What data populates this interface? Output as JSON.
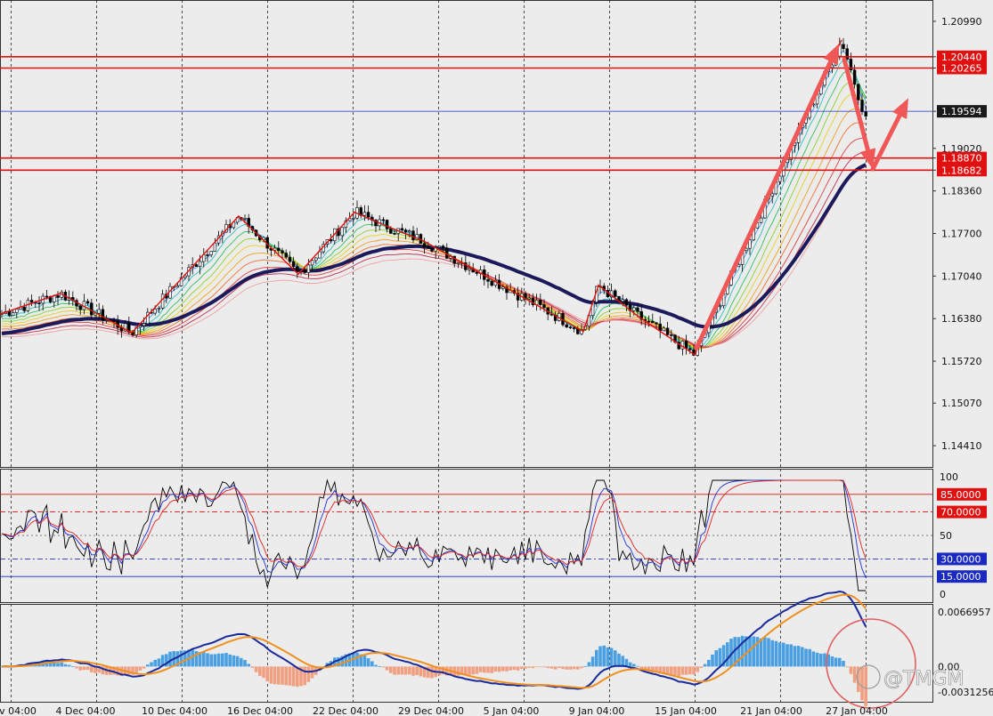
{
  "chart_data": [
    {
      "type": "candlestick",
      "panel": "price",
      "y_ticks": [
        "1.20990",
        "1.20440",
        "1.20265",
        "1.19594",
        "1.19020",
        "1.18870",
        "1.18682",
        "1.18360",
        "1.17700",
        "1.17040",
        "1.16380",
        "1.15720",
        "1.15070",
        "1.14410"
      ],
      "ylim": [
        1.1408,
        1.2132
      ],
      "horizontal_lines": [
        {
          "value": 1.2044,
          "label": "1.20440",
          "color": "#e01010"
        },
        {
          "value": 1.20265,
          "label": "1.20265",
          "color": "#e01010"
        },
        {
          "value": 1.19594,
          "label": "1.19594",
          "color": "#1a1a1a"
        },
        {
          "value": 1.1887,
          "label": "1.18870",
          "color": "#e01010"
        },
        {
          "value": 1.18682,
          "label": "1.18682",
          "color": "#e01010"
        }
      ],
      "x_labels": [
        "v 04:00",
        "4 Dec 04:00",
        "10 Dec 04:00",
        "16 Dec 04:00",
        "22 Dec 04:00",
        "29 Dec 04:00",
        "5 Jan 04:00",
        "9 Jan 04:00",
        "15 Jan 04:00",
        "21 Jan 04:00",
        "27 Jan 04:00"
      ],
      "zigzag": [
        [
          0,
          1.1645
        ],
        [
          68,
          1.1677
        ],
        [
          148,
          1.1616
        ],
        [
          268,
          1.1797
        ],
        [
          335,
          1.1707
        ],
        [
          398,
          1.1803
        ],
        [
          440,
          1.1778
        ],
        [
          475,
          1.1759
        ],
        [
          655,
          1.1618
        ],
        [
          672,
          1.169
        ],
        [
          715,
          1.1643
        ],
        [
          780,
          1.1582
        ],
        [
          945,
          1.207
        ]
      ],
      "arrows": [
        {
          "from": [
            782,
            1.1592
          ],
          "to": [
            942,
            1.2064
          ],
          "color": "#f05858"
        },
        {
          "from": [
            948,
            1.204
          ],
          "to": [
            980,
            1.187
          ],
          "color": "#f05858"
        },
        {
          "from": [
            980,
            1.187
          ],
          "to": [
            1020,
            1.198
          ],
          "color": "#f05858"
        }
      ]
    },
    {
      "type": "line",
      "panel": "oscillator",
      "ylim": [
        0,
        100
      ],
      "y_ticks": [
        "100",
        "50",
        "0"
      ],
      "levels": [
        {
          "value": 85,
          "label": "85.0000",
          "color": "#e01010"
        },
        {
          "value": 70,
          "label": "70.0000",
          "color": "#e01010"
        },
        {
          "value": 30,
          "label": "30.0000",
          "color": "#1a2ac0"
        },
        {
          "value": 15,
          "label": "15.0000",
          "color": "#1a2ac0"
        }
      ]
    },
    {
      "type": "histogram",
      "panel": "macd",
      "ylim": [
        -0.0031256,
        0.0066957
      ],
      "y_ticks": [
        "0.0066957",
        "0.00",
        "-0.0031256"
      ]
    }
  ],
  "watermark": "@TMGM",
  "colors": {
    "background": "#ececec",
    "bull_candle": "#ffffff",
    "bear_candle": "#000000",
    "grid": "#222222",
    "tag_red": "#e01010",
    "tag_dark": "#1a1a1a",
    "tag_blue": "#1a2ac0",
    "hist_pos": "#4aa0e0",
    "hist_neg": "#f0a080",
    "circle": "#e06060"
  }
}
